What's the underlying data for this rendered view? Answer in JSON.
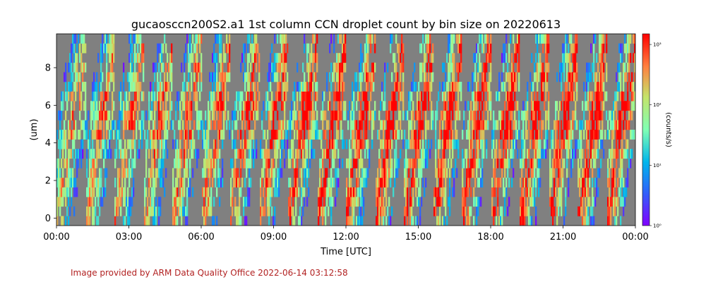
{
  "chart_data": {
    "type": "heatmap",
    "title": "gucaosccn200S2.a1 1st column CCN droplet count by bin size on 20220613",
    "xlabel": "Time [UTC]",
    "ylabel": "(um)",
    "x_ticks": [
      "00:00",
      "03:00",
      "06:00",
      "09:00",
      "12:00",
      "15:00",
      "18:00",
      "21:00",
      "00:00"
    ],
    "x_range_hours": [
      0,
      24
    ],
    "y_ticks": [
      "0",
      "2",
      "4",
      "6",
      "8"
    ],
    "y_tick_values": [
      0,
      2,
      4,
      6,
      8
    ],
    "ylim": [
      -0.4,
      9.8
    ],
    "missing_color": "#808080",
    "colorbar": {
      "label": "(counts/s)",
      "scale": "log",
      "range": [
        1,
        1500
      ],
      "tick_labels": [
        "10⁰",
        "10¹",
        "10²",
        "10³"
      ],
      "colormap": "rainbow"
    },
    "pattern": {
      "cycle_hours": 1.2,
      "n_cycles": 20,
      "description_of_data": "periodic supersaturation cycles; counts peak in upper bins near 6 um"
    }
  },
  "credit": "Image provided by ARM Data Quality Office 2022-06-14 03:12:58",
  "colors": {
    "background": "#ffffff",
    "missing": "#808080",
    "credit_text": "#b22222"
  }
}
